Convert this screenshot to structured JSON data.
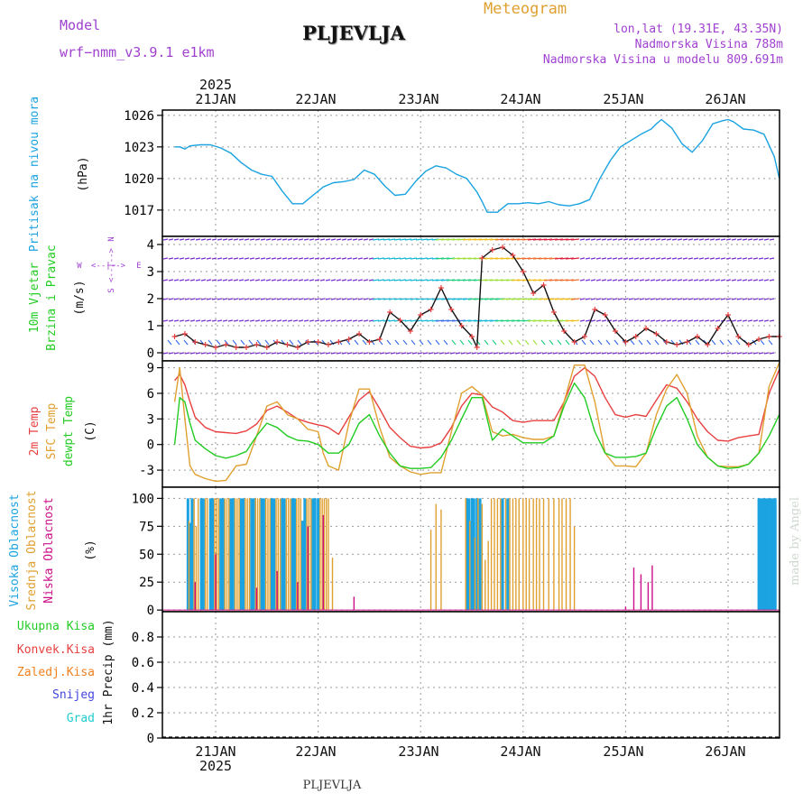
{
  "header": {
    "model_label": "Model",
    "model_name": "wrf−nmm_v3.9.1  e1km",
    "station": "PLJEVLJA",
    "product": "Meteogram",
    "lonlat": "lon,lat (19.31E, 43.35N)",
    "altitude": "Nadmorska Visina 788m",
    "model_altitude": "Nadmorska Visina u modelu 809.691m",
    "footer_station": "PLJEVLJA",
    "credit": "made by Angel"
  },
  "colors": {
    "pressure": "#1aa3e0",
    "temp2m": "#e84040",
    "sfc_temp": "#e0a030",
    "dewpt": "#22cc22",
    "purple": "#a040d0",
    "high_cloud": "#1aa3e0",
    "mid_cloud": "#e0a030",
    "low_cloud": "#cc1188",
    "precip_total": "#22cc22",
    "precip_conv": "#e84040",
    "precip_frozen": "#f08020",
    "snow": "#4444dd",
    "grad": "#22cccc"
  },
  "chart_data": [
    {
      "type": "line",
      "panel": "pressure",
      "ylabel_left": "Pritisak na nivou mora",
      "ylabel_unit": "(hPa)",
      "ylim": [
        1014.5,
        1026.5
      ],
      "yticks": [
        1017,
        1020,
        1023,
        1026
      ],
      "xlim_days": [
        20.6,
        26.5
      ],
      "x_ticks": [
        "21JAN",
        "22JAN",
        "23JAN",
        "24JAN",
        "25JAN",
        "26JAN"
      ],
      "x_year": "2025",
      "series": [
        {
          "name": "Pritisak",
          "x": [
            20.6,
            20.65,
            20.7,
            20.75,
            20.85,
            20.95,
            21.05,
            21.15,
            21.25,
            21.35,
            21.45,
            21.55,
            21.65,
            21.75,
            21.85,
            21.95,
            22.05,
            22.15,
            22.25,
            22.35,
            22.45,
            22.55,
            22.65,
            22.75,
            22.85,
            22.95,
            23.05,
            23.15,
            23.25,
            23.35,
            23.45,
            23.55,
            23.6,
            23.65,
            23.75,
            23.85,
            23.95,
            24.05,
            24.15,
            24.25,
            24.35,
            24.45,
            24.55,
            24.65,
            24.75,
            24.85,
            24.95,
            25.05,
            25.15,
            25.25,
            25.3,
            25.35,
            25.45,
            25.55,
            25.65,
            25.75,
            25.85,
            25.95,
            26.0,
            26.05,
            26.15,
            26.25,
            26.35,
            26.45,
            26.5
          ],
          "values": [
            1023.0,
            1023.0,
            1022.8,
            1023.1,
            1023.2,
            1023.2,
            1022.9,
            1022.4,
            1021.5,
            1020.8,
            1020.4,
            1020.2,
            1018.8,
            1017.6,
            1017.6,
            1018.4,
            1019.2,
            1019.6,
            1019.7,
            1019.9,
            1020.8,
            1020.4,
            1019.3,
            1018.4,
            1018.5,
            1019.7,
            1020.7,
            1021.2,
            1021.0,
            1020.4,
            1020.0,
            1018.7,
            1017.8,
            1016.8,
            1016.8,
            1017.6,
            1017.6,
            1017.7,
            1017.6,
            1017.8,
            1017.5,
            1017.4,
            1017.6,
            1018.0,
            1020.0,
            1021.7,
            1023.0,
            1023.6,
            1024.2,
            1024.7,
            1025.2,
            1025.6,
            1024.8,
            1023.3,
            1022.5,
            1023.6,
            1025.2,
            1025.5,
            1025.6,
            1025.4,
            1024.7,
            1024.6,
            1024.2,
            1022.1,
            1020.0
          ]
        }
      ]
    },
    {
      "type": "line",
      "panel": "wind",
      "ylabel_left": [
        "10m Vjetar",
        "Brzina i Pravac"
      ],
      "ylabel_unit": "(m/s)",
      "compass": {
        "w": "W",
        "e": "E",
        "n": "N",
        "s": "S",
        "scale_label": "<--|-->"
      },
      "ylim": [
        -0.3,
        4.3
      ],
      "yticks": [
        0,
        1,
        2,
        3,
        4
      ],
      "series": [
        {
          "name": "Brzina",
          "x": [
            20.6,
            20.7,
            20.8,
            20.9,
            21.0,
            21.1,
            21.2,
            21.3,
            21.4,
            21.5,
            21.6,
            21.7,
            21.8,
            21.9,
            22.0,
            22.1,
            22.2,
            22.3,
            22.4,
            22.5,
            22.6,
            22.7,
            22.8,
            22.9,
            23.0,
            23.1,
            23.2,
            23.3,
            23.4,
            23.5,
            23.55,
            23.6,
            23.7,
            23.8,
            23.9,
            24.0,
            24.1,
            24.2,
            24.3,
            24.4,
            24.5,
            24.6,
            24.7,
            24.8,
            24.9,
            25.0,
            25.1,
            25.2,
            25.3,
            25.4,
            25.5,
            25.6,
            25.7,
            25.8,
            25.9,
            26.0,
            26.1,
            26.2,
            26.3,
            26.4,
            26.5
          ],
          "values": [
            0.6,
            0.7,
            0.4,
            0.3,
            0.2,
            0.3,
            0.2,
            0.2,
            0.3,
            0.2,
            0.4,
            0.3,
            0.2,
            0.4,
            0.4,
            0.3,
            0.4,
            0.5,
            0.7,
            0.4,
            0.5,
            1.5,
            1.2,
            0.8,
            1.4,
            1.6,
            2.4,
            1.6,
            1.0,
            0.6,
            0.2,
            3.5,
            3.8,
            3.9,
            3.6,
            3.0,
            2.2,
            2.5,
            1.5,
            0.8,
            0.4,
            0.6,
            1.6,
            1.4,
            0.8,
            0.4,
            0.6,
            0.9,
            0.7,
            0.4,
            0.3,
            0.4,
            0.6,
            0.3,
            0.9,
            1.4,
            0.6,
            0.3,
            0.5,
            0.6,
            0.6
          ]
        }
      ]
    },
    {
      "type": "line",
      "panel": "temperature",
      "ylabel_left": [
        "2m Temp",
        "SFC Temp",
        "dewpt Temp"
      ],
      "ylabel_unit": "(C)",
      "ylim": [
        -5,
        9.8
      ],
      "yticks": [
        -3,
        0,
        3,
        6,
        9
      ],
      "x": [
        20.6,
        20.65,
        20.7,
        20.75,
        20.8,
        20.9,
        21.0,
        21.1,
        21.2,
        21.3,
        21.4,
        21.5,
        21.6,
        21.7,
        21.8,
        21.9,
        22.0,
        22.05,
        22.1,
        22.2,
        22.3,
        22.4,
        22.5,
        22.6,
        22.7,
        22.8,
        22.9,
        23.0,
        23.1,
        23.2,
        23.3,
        23.4,
        23.5,
        23.6,
        23.7,
        23.8,
        23.9,
        24.0,
        24.1,
        24.2,
        24.3,
        24.4,
        24.5,
        24.6,
        24.7,
        24.8,
        24.9,
        25.0,
        25.1,
        25.2,
        25.3,
        25.4,
        25.5,
        25.6,
        25.7,
        25.8,
        25.9,
        26.0,
        26.1,
        26.2,
        26.3,
        26.4,
        26.5
      ],
      "series": [
        {
          "name": "2m Temp",
          "values": [
            7.5,
            8.2,
            7.0,
            5.0,
            3.2,
            2.0,
            1.5,
            1.4,
            1.3,
            1.6,
            2.4,
            4.0,
            4.5,
            3.8,
            3.0,
            2.6,
            2.3,
            2.2,
            2.0,
            1.2,
            3.2,
            5.2,
            6.2,
            4.2,
            2.0,
            0.8,
            -0.2,
            -0.4,
            -0.3,
            0.2,
            2.0,
            4.5,
            6.0,
            5.8,
            4.4,
            3.8,
            2.8,
            2.6,
            2.8,
            2.8,
            2.8,
            5.0,
            8.0,
            9.0,
            8.0,
            5.5,
            3.5,
            3.2,
            3.5,
            3.3,
            5.2,
            7.0,
            6.6,
            5.0,
            3.0,
            1.5,
            0.5,
            0.4,
            0.8,
            1.0,
            1.2,
            6.0,
            8.8
          ]
        },
        {
          "name": "SFC Temp",
          "values": [
            5.0,
            9.0,
            3.0,
            -2.5,
            -3.5,
            -4.0,
            -4.3,
            -4.2,
            -2.5,
            -2.3,
            1.0,
            4.5,
            5.0,
            3.5,
            3.0,
            1.8,
            1.5,
            -1.0,
            -2.5,
            -3.0,
            2.5,
            6.5,
            6.5,
            2.0,
            -1.5,
            -2.5,
            -3.2,
            -3.5,
            -3.3,
            -3.3,
            1.5,
            6.0,
            6.8,
            5.8,
            1.5,
            1.0,
            1.2,
            0.8,
            0.6,
            0.6,
            1.0,
            5.0,
            9.3,
            9.3,
            5.0,
            -1.0,
            -2.5,
            -2.5,
            -2.6,
            -1.0,
            3.5,
            6.5,
            8.2,
            6.0,
            1.0,
            -1.5,
            -2.5,
            -2.6,
            -2.6,
            -2.3,
            -1.0,
            6.8,
            9.6
          ]
        },
        {
          "name": "dewpt Temp",
          "values": [
            0.0,
            5.5,
            5.0,
            2.5,
            0.5,
            -0.5,
            -1.3,
            -1.6,
            -1.3,
            -0.8,
            1.0,
            2.5,
            2.0,
            1.0,
            0.5,
            0.4,
            0.0,
            -0.5,
            -1.0,
            -1.0,
            0.0,
            2.5,
            3.5,
            1.0,
            -1.0,
            -2.5,
            -2.8,
            -2.8,
            -2.7,
            -1.5,
            0.5,
            3.0,
            5.5,
            5.5,
            0.5,
            1.8,
            1.0,
            0.2,
            0.2,
            0.2,
            1.0,
            4.5,
            7.2,
            5.5,
            1.5,
            -1.0,
            -1.5,
            -1.5,
            -1.4,
            -1.0,
            2.0,
            4.5,
            5.5,
            3.0,
            0.0,
            -1.5,
            -2.5,
            -2.8,
            -2.7,
            -2.3,
            -1.0,
            1.0,
            3.5
          ]
        }
      ]
    },
    {
      "type": "bar",
      "panel": "cloud_cover",
      "ylabel_left": [
        "Visoka Oblacnost",
        "Srednja Oblacnost",
        "Niska Oblacnost"
      ],
      "ylabel_unit": "(%)",
      "ylim": [
        0,
        100
      ],
      "yticks": [
        0,
        25,
        50,
        75,
        100
      ],
      "series": [
        {
          "name": "Visoka Oblacnost",
          "x": [
            20.73,
            20.75,
            20.77,
            20.86,
            20.88,
            20.95,
            20.97,
            21.05,
            21.07,
            21.15,
            21.17,
            21.25,
            21.27,
            21.35,
            21.37,
            21.45,
            21.47,
            21.55,
            21.57,
            21.65,
            21.67,
            21.75,
            21.77,
            21.85,
            21.87,
            21.95,
            21.97,
            22.0,
            23.45,
            23.47,
            23.5,
            23.52,
            23.55,
            23.58,
            23.8,
            23.85,
            26.3,
            26.32,
            26.34,
            26.36,
            26.38,
            26.4,
            26.42,
            26.44,
            26.46
          ],
          "values": [
            100,
            78,
            100,
            100,
            100,
            100,
            100,
            100,
            100,
            100,
            100,
            100,
            100,
            100,
            100,
            100,
            100,
            100,
            100,
            100,
            100,
            100,
            100,
            80,
            100,
            100,
            100,
            100,
            100,
            100,
            100,
            100,
            100,
            100,
            100,
            100,
            100,
            100,
            100,
            100,
            100,
            100,
            100,
            100,
            100
          ]
        },
        {
          "name": "Srednja Oblacnost",
          "x": [
            20.74,
            20.79,
            20.81,
            20.83,
            20.9,
            20.92,
            20.99,
            21.01,
            21.03,
            21.09,
            21.11,
            21.13,
            21.19,
            21.21,
            21.23,
            21.29,
            21.31,
            21.33,
            21.39,
            21.41,
            21.43,
            21.49,
            21.51,
            21.53,
            21.59,
            21.61,
            21.63,
            21.69,
            21.71,
            21.73,
            21.79,
            21.81,
            21.83,
            21.89,
            21.91,
            21.93,
            22.02,
            22.04,
            22.06,
            22.08,
            22.1,
            22.14,
            23.1,
            23.15,
            23.2,
            23.44,
            23.48,
            23.53,
            23.56,
            23.6,
            23.63,
            23.66,
            23.69,
            23.72,
            23.75,
            23.78,
            23.83,
            23.87,
            23.9,
            23.93,
            23.96,
            24.0,
            24.03,
            24.06,
            24.1,
            24.13,
            24.16,
            24.2,
            24.25,
            24.3,
            24.35,
            24.38,
            24.42,
            24.46,
            24.5
          ],
          "values": [
            80,
            100,
            75,
            100,
            100,
            100,
            100,
            100,
            100,
            100,
            100,
            100,
            100,
            100,
            100,
            100,
            100,
            100,
            100,
            100,
            100,
            100,
            100,
            100,
            100,
            100,
            100,
            100,
            100,
            100,
            100,
            100,
            100,
            100,
            100,
            100,
            100,
            100,
            100,
            100,
            100,
            47,
            72,
            95,
            90,
            100,
            80,
            65,
            100,
            95,
            45,
            62,
            100,
            100,
            100,
            100,
            100,
            100,
            100,
            100,
            100,
            100,
            100,
            100,
            100,
            100,
            100,
            100,
            100,
            100,
            100,
            100,
            100,
            100,
            75
          ]
        },
        {
          "name": "Niska Oblacnost",
          "x": [
            20.8,
            21.0,
            21.4,
            21.6,
            21.8,
            21.9,
            22.05,
            22.35,
            25.0,
            25.08,
            25.15,
            25.22,
            25.26
          ],
          "values": [
            25,
            50,
            20,
            35,
            25,
            75,
            85,
            12,
            3,
            38,
            32,
            25,
            40
          ]
        }
      ]
    },
    {
      "type": "bar",
      "panel": "precipitation",
      "ylabel_unit": "1hr Precip (mm)",
      "ylim": [
        0,
        1.0
      ],
      "yticks": [
        0,
        0.2,
        0.4,
        0.6,
        0.8
      ],
      "legend": [
        "Ukupna Kisa",
        "Konvek.Kisa",
        "Zaledj.Kisa",
        "Snijeg",
        "Grad"
      ],
      "series": []
    }
  ]
}
